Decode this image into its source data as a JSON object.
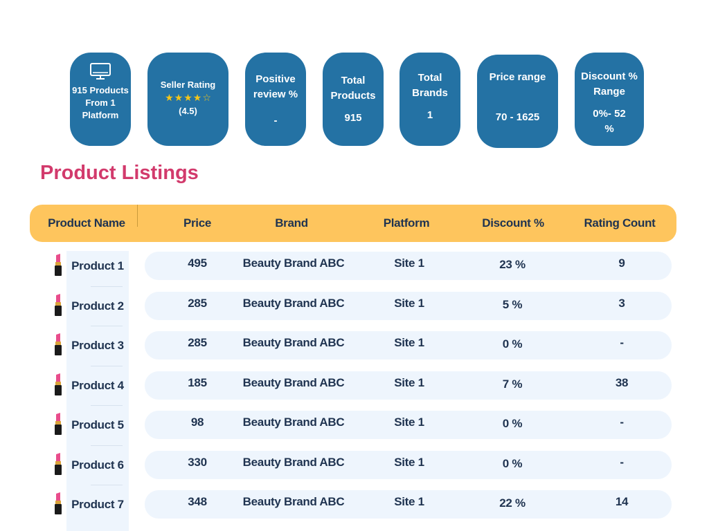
{
  "stats": {
    "products": {
      "label": "915 Products From 1 Platform",
      "icon": "monitor-icon"
    },
    "rating": {
      "label": "Seller Rating",
      "stars": 4,
      "max_stars": 5,
      "value": "(4.5)"
    },
    "positive": {
      "label": "Positive review %",
      "value": "-"
    },
    "total_products": {
      "label": "Total Products",
      "value": "915"
    },
    "brands": {
      "label": "Total Brands",
      "value": "1"
    },
    "price": {
      "label": "Price range",
      "value": "70 - 1625"
    },
    "discount": {
      "label": "Discount % Range",
      "value": "0%- 52 %"
    }
  },
  "section_title": "Product Listings",
  "columns": {
    "name": "Product Name",
    "price": "Price",
    "brand": "Brand",
    "platform": "Platform",
    "discount": "Discount %",
    "count": "Rating  Count"
  },
  "rows": [
    {
      "name": "Product 1",
      "price": "495",
      "brand": "Beauty Brand ABC",
      "platform": "Site 1",
      "discount": "23 %",
      "count": "9"
    },
    {
      "name": "Product  2",
      "price": "285",
      "brand": "Beauty Brand ABC",
      "platform": "Site 1",
      "discount": "5 %",
      "count": "3"
    },
    {
      "name": "Product 3",
      "price": "285",
      "brand": "Beauty Brand ABC",
      "platform": "Site 1",
      "discount": "0 %",
      "count": "-"
    },
    {
      "name": "Product 4",
      "price": "185",
      "brand": "Beauty Brand ABC",
      "platform": "Site 1",
      "discount": "7 %",
      "count": "38"
    },
    {
      "name": "Product 5",
      "price": "98",
      "brand": "Beauty Brand ABC",
      "platform": "Site 1",
      "discount": "0 %",
      "count": "-"
    },
    {
      "name": "Product 6",
      "price": "330",
      "brand": "Beauty Brand ABC",
      "platform": "Site 1",
      "discount": "0 %",
      "count": "-"
    },
    {
      "name": "Product 7",
      "price": "348",
      "brand": "Beauty Brand ABC",
      "platform": "Site 1",
      "discount": "22 %",
      "count": "14"
    }
  ],
  "colors": {
    "card": "#2472a4",
    "header": "#fec55d",
    "title": "#d23a6c",
    "row": "#eef5fd",
    "text": "#1f3350"
  }
}
